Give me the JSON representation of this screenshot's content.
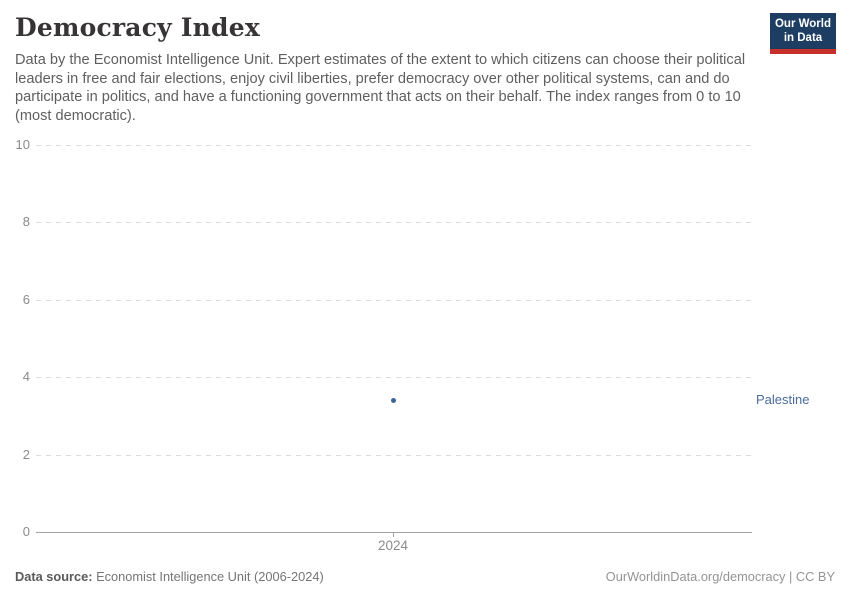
{
  "header": {
    "title": "Democracy Index",
    "subtitle": "Data by the Economist Intelligence Unit. Expert estimates of the extent to which citizens can choose their political leaders in free and fair elections, enjoy civil liberties, prefer democracy over other political systems, can and do participate in politics, and have a functioning government that acts on their behalf. The index ranges from 0 to 10 (most democratic).",
    "logo": {
      "line1": "Our World",
      "line2": "in Data",
      "bg_color": "#1d3d63",
      "bar_color": "#c5302b"
    }
  },
  "chart_data": {
    "type": "scatter",
    "title": "Democracy Index",
    "x": [
      2024
    ],
    "xtick_labels": [
      "2024"
    ],
    "series": [
      {
        "name": "Palestine",
        "values": [
          3.4
        ],
        "color": "#3d639c",
        "label_color": "#4c6a9c"
      }
    ],
    "xlabel": "",
    "ylabel": "",
    "ylim": [
      0,
      10
    ],
    "yticks": [
      0,
      2,
      4,
      6,
      8,
      10
    ],
    "grid": "horizontal-dashed",
    "legend_position": "right-of-point"
  },
  "footer": {
    "source_label": "Data source:",
    "source_text": " Economist Intelligence Unit (2006-2024)",
    "credit": "OurWorldinData.org/democracy | CC BY"
  }
}
